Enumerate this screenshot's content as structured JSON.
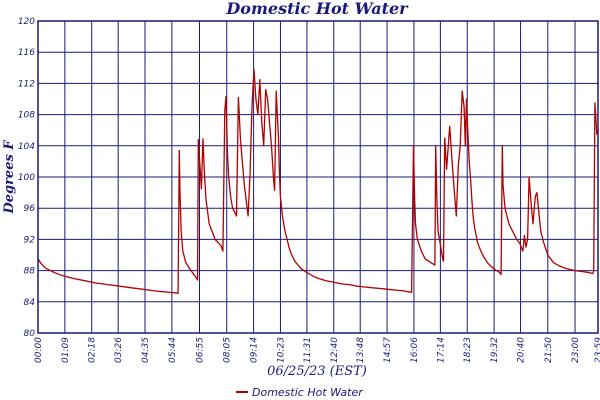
{
  "colors": {
    "grid": "#1a1a78",
    "series": "#b00000",
    "text": "#1a1a78",
    "background": "#ffffff"
  },
  "chart_data": {
    "type": "line",
    "title": "Domestic Hot Water",
    "xlabel": "06/25/23 (EST)",
    "ylabel": "Degrees F",
    "ylim": [
      80,
      120
    ],
    "xlim_minutes": [
      0,
      1439
    ],
    "grid": true,
    "legend_position": "bottom-center",
    "y_ticks": [
      "80",
      "84",
      "88",
      "92",
      "96",
      "100",
      "104",
      "108",
      "112",
      "116",
      "120"
    ],
    "x_ticks": [
      {
        "label": "00:00",
        "min": 0
      },
      {
        "label": "01:09",
        "min": 69
      },
      {
        "label": "02:18",
        "min": 138
      },
      {
        "label": "03:26",
        "min": 206
      },
      {
        "label": "04:35",
        "min": 275
      },
      {
        "label": "05:44",
        "min": 344
      },
      {
        "label": "06:55",
        "min": 415
      },
      {
        "label": "08:05",
        "min": 485
      },
      {
        "label": "09:14",
        "min": 554
      },
      {
        "label": "10:23",
        "min": 623
      },
      {
        "label": "11:31",
        "min": 691
      },
      {
        "label": "12:40",
        "min": 760
      },
      {
        "label": "13:48",
        "min": 828
      },
      {
        "label": "14:57",
        "min": 897
      },
      {
        "label": "16:06",
        "min": 966
      },
      {
        "label": "17:14",
        "min": 1034
      },
      {
        "label": "18:23",
        "min": 1103
      },
      {
        "label": "19:32",
        "min": 1172
      },
      {
        "label": "20:40",
        "min": 1240
      },
      {
        "label": "21:50",
        "min": 1310
      },
      {
        "label": "23:00",
        "min": 1380
      },
      {
        "label": "23:59",
        "min": 1439
      }
    ],
    "series": [
      {
        "name": "Domestic Hot Water",
        "x_minutes": [
          0,
          8,
          20,
          40,
          60,
          90,
          120,
          150,
          180,
          210,
          240,
          270,
          300,
          320,
          340,
          360,
          363,
          365,
          368,
          372,
          380,
          390,
          405,
          410,
          412,
          420,
          424,
          428,
          432,
          440,
          455,
          470,
          475,
          478,
          480,
          483,
          487,
          490,
          495,
          500,
          510,
          515,
          520,
          525,
          530,
          535,
          540,
          545,
          550,
          555,
          560,
          565,
          570,
          575,
          580,
          585,
          590,
          595,
          600,
          605,
          608,
          612,
          618,
          620,
          623,
          628,
          635,
          640,
          645,
          650,
          660,
          675,
          690,
          700,
          710,
          720,
          740,
          760,
          780,
          800,
          820,
          840,
          860,
          880,
          900,
          920,
          940,
          950,
          960,
          965,
          968,
          970,
          975,
          985,
          995,
          1010,
          1020,
          1022,
          1025,
          1028,
          1035,
          1040,
          1042,
          1045,
          1050,
          1058,
          1064,
          1070,
          1075,
          1080,
          1085,
          1090,
          1095,
          1098,
          1101,
          1104,
          1108,
          1112,
          1115,
          1118,
          1122,
          1126,
          1130,
          1138,
          1145,
          1155,
          1165,
          1175,
          1185,
          1190,
          1193,
          1195,
          1200,
          1210,
          1220,
          1230,
          1238,
          1242,
          1246,
          1250,
          1254,
          1258,
          1262,
          1268,
          1272,
          1278,
          1282,
          1288,
          1292,
          1300,
          1310,
          1325,
          1340,
          1355,
          1370,
          1380,
          1395,
          1410,
          1420,
          1425,
          1428,
          1431,
          1434,
          1436,
          1439
        ],
        "values": [
          89.5,
          88.9,
          88.3,
          87.8,
          87.4,
          87.0,
          86.7,
          86.4,
          86.2,
          86.0,
          85.8,
          85.6,
          85.4,
          85.3,
          85.2,
          85.1,
          103.4,
          98.0,
          93.0,
          90.5,
          89.0,
          88.2,
          87.2,
          86.8,
          104.8,
          98.5,
          104.9,
          100.0,
          97.0,
          94.0,
          92.0,
          91.2,
          90.5,
          101.0,
          108.5,
          110.3,
          103.0,
          100.0,
          97.5,
          96.0,
          95.0,
          110.2,
          105.0,
          102.0,
          99.0,
          97.0,
          95.0,
          100.5,
          109.0,
          113.8,
          110.0,
          108.0,
          112.5,
          107.0,
          104.0,
          111.2,
          110.0,
          107.0,
          104.0,
          100.0,
          98.3,
          111.0,
          105.0,
          101.0,
          97.5,
          95.0,
          93.0,
          92.0,
          91.0,
          90.2,
          89.2,
          88.3,
          87.8,
          87.5,
          87.2,
          87.0,
          86.7,
          86.5,
          86.3,
          86.2,
          86.0,
          85.9,
          85.8,
          85.7,
          85.6,
          85.5,
          85.4,
          85.3,
          85.2,
          104.0,
          97.0,
          94.0,
          92.0,
          90.5,
          89.5,
          89.0,
          88.7,
          104.0,
          97.0,
          93.0,
          91.0,
          89.5,
          89.2,
          105.0,
          101.0,
          106.5,
          102.0,
          98.0,
          95.0,
          101.5,
          104.0,
          111.0,
          109.0,
          104.0,
          110.0,
          106.5,
          102.0,
          99.5,
          97.0,
          95.0,
          93.5,
          92.5,
          91.5,
          90.5,
          89.8,
          89.0,
          88.5,
          88.1,
          87.8,
          87.5,
          104.0,
          99.0,
          96.0,
          94.0,
          93.0,
          92.0,
          91.5,
          91.0,
          90.5,
          92.5,
          91.0,
          92.0,
          100.0,
          96.0,
          94.0,
          97.5,
          98.0,
          95.0,
          93.0,
          91.5,
          90.0,
          89.0,
          88.6,
          88.3,
          88.1,
          88.0,
          87.9,
          87.8,
          87.7,
          87.6,
          87.9,
          109.5,
          107.0,
          105.5,
          106.0
        ]
      }
    ]
  }
}
